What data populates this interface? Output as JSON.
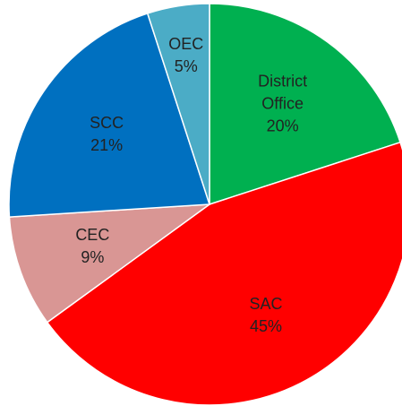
{
  "chart_data": {
    "type": "pie",
    "categories": [
      "District Office",
      "SAC",
      "CEC",
      "SCC",
      "OEC"
    ],
    "values": [
      20,
      45,
      9,
      21,
      5
    ],
    "value_labels": [
      "20%",
      "45%",
      "9%",
      "21%",
      "5%"
    ],
    "colors": [
      "#00b050",
      "#ff0000",
      "#d99694",
      "#0070c0",
      "#4bacc6"
    ]
  }
}
